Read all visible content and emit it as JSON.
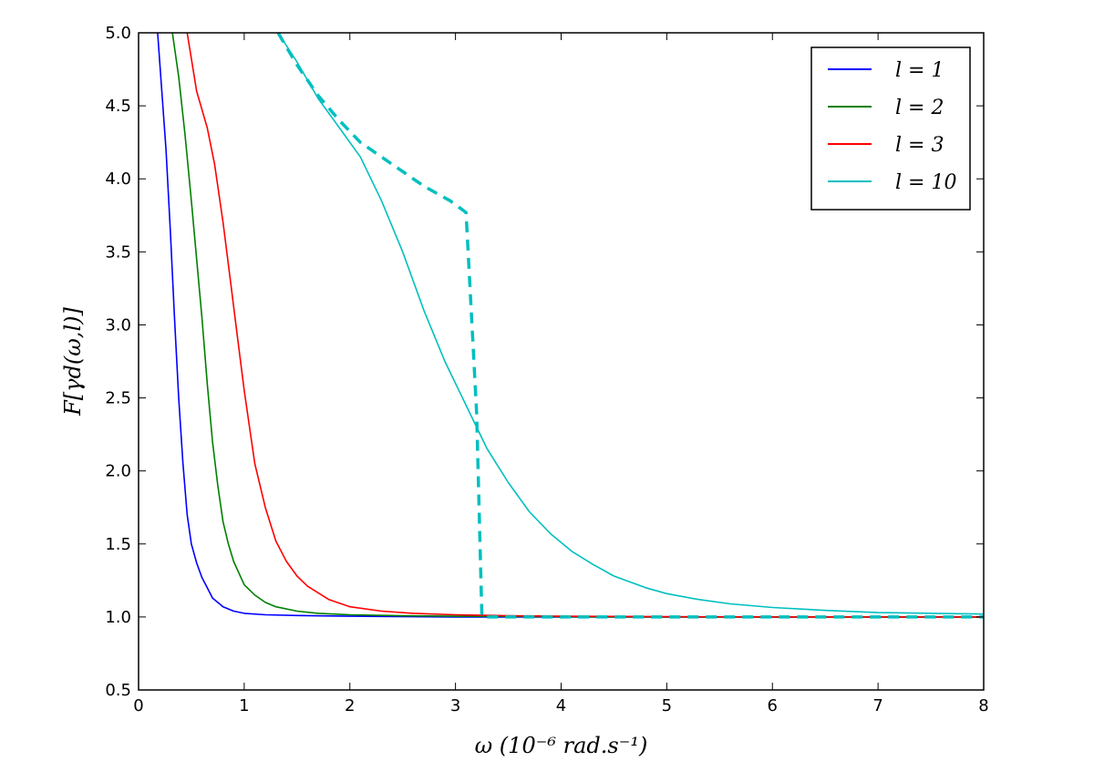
{
  "chart_data": {
    "type": "line",
    "xlabel": "ω (10⁻⁶ rad.s⁻¹)",
    "ylabel": "F[γd(ω,l)]",
    "xlim": [
      0,
      8
    ],
    "ylim": [
      0.5,
      5.0
    ],
    "xticks": [
      "0",
      "1",
      "2",
      "3",
      "4",
      "5",
      "6",
      "7",
      "8"
    ],
    "yticks": [
      "0.5",
      "1.0",
      "1.5",
      "2.0",
      "2.5",
      "3.0",
      "3.5",
      "4.0",
      "4.5",
      "5.0"
    ],
    "grid": false,
    "legend_position": "top-right",
    "series": [
      {
        "name": "l = 1",
        "color": "#0000ff",
        "style": "solid",
        "x": [
          0.18,
          0.22,
          0.26,
          0.3,
          0.34,
          0.38,
          0.42,
          0.46,
          0.5,
          0.55,
          0.6,
          0.65,
          0.7,
          0.8,
          0.9,
          1.0,
          1.2,
          1.5,
          2.0,
          3.0,
          4.0,
          5.0,
          6.0,
          7.0,
          8.0
        ],
        "y": [
          5.0,
          4.6,
          4.2,
          3.65,
          3.05,
          2.5,
          2.05,
          1.7,
          1.5,
          1.37,
          1.27,
          1.2,
          1.13,
          1.07,
          1.04,
          1.025,
          1.015,
          1.01,
          1.005,
          1.0,
          1.0,
          1.0,
          1.0,
          1.0,
          1.0
        ]
      },
      {
        "name": "l = 2",
        "color": "#008000",
        "style": "solid",
        "x": [
          0.32,
          0.38,
          0.44,
          0.5,
          0.55,
          0.6,
          0.65,
          0.7,
          0.75,
          0.8,
          0.85,
          0.9,
          0.95,
          1.0,
          1.1,
          1.2,
          1.3,
          1.5,
          1.7,
          2.0,
          2.5,
          3.0,
          4.0,
          5.0,
          6.0,
          7.0,
          8.0
        ],
        "y": [
          5.0,
          4.7,
          4.3,
          3.85,
          3.45,
          3.05,
          2.6,
          2.2,
          1.9,
          1.65,
          1.5,
          1.38,
          1.3,
          1.22,
          1.15,
          1.1,
          1.07,
          1.04,
          1.025,
          1.015,
          1.008,
          1.005,
          1.002,
          1.0,
          1.0,
          1.0,
          1.0
        ]
      },
      {
        "name": "l = 3",
        "color": "#ff0000",
        "style": "solid",
        "x": [
          0.46,
          0.55,
          0.65,
          0.72,
          0.8,
          0.87,
          0.93,
          1.0,
          1.05,
          1.1,
          1.2,
          1.3,
          1.4,
          1.5,
          1.6,
          1.8,
          2.0,
          2.3,
          2.6,
          3.0,
          3.5,
          4.0,
          5.0,
          6.0,
          7.0,
          8.0
        ],
        "y": [
          5.0,
          4.6,
          4.35,
          4.1,
          3.7,
          3.3,
          2.95,
          2.55,
          2.3,
          2.05,
          1.75,
          1.52,
          1.38,
          1.28,
          1.21,
          1.12,
          1.07,
          1.04,
          1.025,
          1.015,
          1.008,
          1.005,
          1.002,
          1.0,
          1.0,
          1.0
        ]
      },
      {
        "name": "l = 10",
        "color": "#00bfbf",
        "style": "solid",
        "x": [
          1.32,
          1.5,
          1.7,
          1.9,
          2.1,
          2.3,
          2.5,
          2.7,
          2.9,
          3.1,
          3.3,
          3.5,
          3.7,
          3.9,
          4.1,
          4.3,
          4.5,
          4.8,
          5.0,
          5.3,
          5.6,
          6.0,
          6.5,
          7.0,
          7.5,
          8.0
        ],
        "y": [
          5.0,
          4.8,
          4.55,
          4.35,
          4.15,
          3.85,
          3.5,
          3.1,
          2.75,
          2.45,
          2.15,
          1.92,
          1.72,
          1.57,
          1.45,
          1.36,
          1.28,
          1.2,
          1.16,
          1.12,
          1.09,
          1.065,
          1.045,
          1.03,
          1.025,
          1.02
        ]
      },
      {
        "name": "",
        "color": "#00bfbf",
        "style": "dashed",
        "x": [
          1.32,
          1.5,
          1.7,
          1.9,
          2.1,
          2.4,
          2.7,
          2.95,
          3.1,
          3.1,
          3.2,
          3.25,
          4.0,
          5.0,
          6.0,
          7.0,
          8.0
        ],
        "y": [
          5.0,
          4.78,
          4.57,
          4.4,
          4.25,
          4.1,
          3.95,
          3.85,
          3.77,
          3.77,
          2.4,
          1.0,
          1.0,
          1.0,
          1.0,
          1.0,
          1.0
        ]
      }
    ]
  }
}
